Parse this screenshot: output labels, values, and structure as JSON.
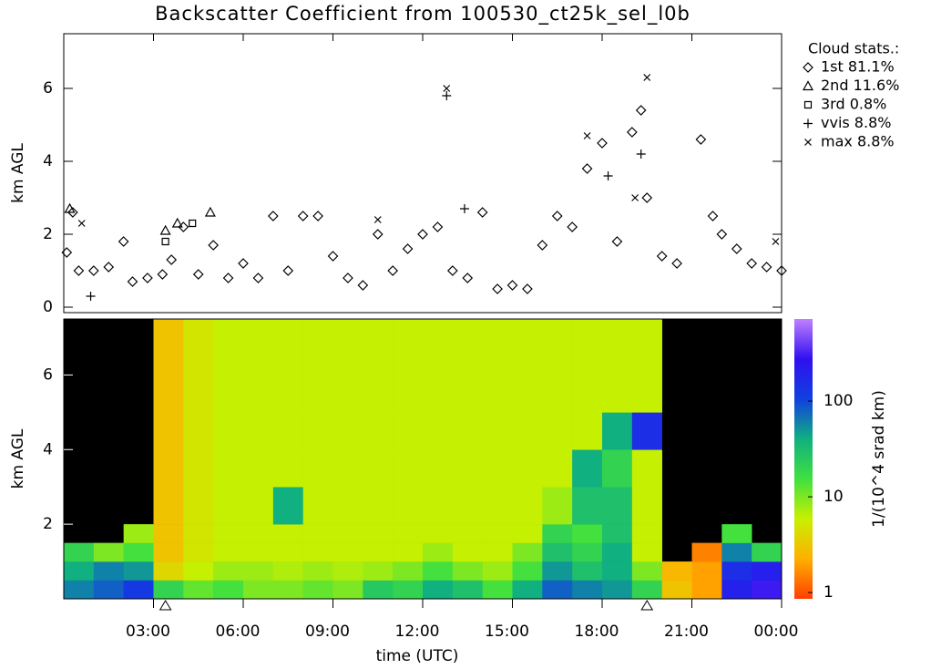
{
  "chart_data": [
    {
      "type": "scatter",
      "title": "Backscatter Coefficient from 100530_ct25k_sel_l0b",
      "ylabel": "km AGL",
      "xlim": [
        0,
        24
      ],
      "ylim": [
        -0.15,
        7.5
      ],
      "yticks": [
        0,
        2,
        4,
        6
      ],
      "legend_title": "Cloud stats.:",
      "legend": "upper right outside",
      "series": [
        {
          "name": "1st 81.1%",
          "marker": "diamond",
          "color": "#000000",
          "x": [
            0.1,
            0.3,
            0.5,
            1,
            1.5,
            2,
            2.3,
            2.8,
            3.3,
            3.6,
            4,
            4.5,
            5,
            5.5,
            6,
            6.5,
            7,
            7.5,
            8,
            8.5,
            9,
            9.5,
            10,
            10.5,
            11,
            11.5,
            12,
            12.5,
            13,
            13.5,
            14,
            14.5,
            15,
            15.5,
            16,
            16.5,
            17,
            17.5,
            18,
            18.5,
            19,
            19.3,
            19.5,
            20,
            20.5,
            21.3,
            21.7,
            22,
            22.5,
            23,
            23.5,
            24
          ],
          "y": [
            1.5,
            2.6,
            1.0,
            1.0,
            1.1,
            1.8,
            0.7,
            0.8,
            0.9,
            1.3,
            2.2,
            0.9,
            1.7,
            0.8,
            1.2,
            0.8,
            2.5,
            1.0,
            2.5,
            2.5,
            1.4,
            0.8,
            0.6,
            2.0,
            1.0,
            1.6,
            2.0,
            2.2,
            1.0,
            0.8,
            2.6,
            0.5,
            0.6,
            0.5,
            1.7,
            2.5,
            2.2,
            3.8,
            4.5,
            1.8,
            4.8,
            5.4,
            3.0,
            1.4,
            1.2,
            4.6,
            2.5,
            2.0,
            1.6,
            1.2,
            1.1,
            1.0
          ]
        },
        {
          "name": "2nd 11.6%",
          "marker": "triangle",
          "color": "#000000",
          "x": [
            0.2,
            3.4,
            3.8,
            4.9
          ],
          "y": [
            2.7,
            2.1,
            2.3,
            2.6
          ]
        },
        {
          "name": "3rd 0.8%",
          "marker": "square",
          "color": "#000000",
          "x": [
            3.4,
            4.3
          ],
          "y": [
            1.8,
            2.3
          ]
        },
        {
          "name": "vvis 8.8%",
          "marker": "plus",
          "color": "#000000",
          "x": [
            0.9,
            12.8,
            13.4,
            18.2,
            19.3
          ],
          "y": [
            0.3,
            5.8,
            2.7,
            3.6,
            4.2
          ]
        },
        {
          "name": "max 8.8%",
          "marker": "x",
          "color": "#000000",
          "x": [
            0.6,
            10.5,
            12.8,
            17.5,
            19.1,
            19.5,
            23.8
          ],
          "y": [
            2.3,
            2.4,
            6.0,
            4.7,
            3.0,
            6.3,
            1.8
          ]
        }
      ]
    },
    {
      "type": "heatmap",
      "xlabel": "time (UTC)",
      "ylabel": "km AGL",
      "xlim": [
        0,
        24
      ],
      "ylim": [
        0,
        7.5
      ],
      "xticks": [
        {
          "value": 3,
          "label": "03:00"
        },
        {
          "value": 6,
          "label": "06:00"
        },
        {
          "value": 9,
          "label": "09:00"
        },
        {
          "value": 12,
          "label": "12:00"
        },
        {
          "value": 15,
          "label": "15:00"
        },
        {
          "value": 18,
          "label": "18:00"
        },
        {
          "value": 21,
          "label": "21:00"
        },
        {
          "value": 24,
          "label": "00:00"
        }
      ],
      "yticks": [
        2,
        4,
        6
      ],
      "x_edges": [
        0,
        1,
        2,
        3,
        4,
        5,
        6,
        7,
        8,
        9,
        10,
        11,
        12,
        13,
        14,
        15,
        16,
        17,
        18,
        19,
        20,
        21,
        22,
        23,
        24
      ],
      "y_edges": [
        0,
        0.5,
        1,
        1.5,
        2,
        3,
        4,
        5,
        6,
        7.5
      ],
      "z": [
        [
          60,
          40,
          20,
          null,
          null,
          null,
          null,
          null,
          null
        ],
        [
          80,
          60,
          10,
          null,
          null,
          null,
          null,
          null,
          null
        ],
        [
          120,
          50,
          15,
          8,
          null,
          null,
          null,
          null,
          null
        ],
        [
          20,
          4,
          3,
          3,
          3,
          3,
          3,
          3,
          3
        ],
        [
          12,
          6,
          5,
          5,
          5,
          5,
          5,
          5,
          5
        ],
        [
          15,
          8,
          6,
          6,
          6,
          6,
          6,
          6,
          6
        ],
        [
          10,
          8,
          6,
          6,
          6,
          6,
          6,
          6,
          6
        ],
        [
          10,
          7,
          6,
          6,
          40,
          6,
          6,
          6,
          6
        ],
        [
          12,
          8,
          6,
          6,
          6,
          6,
          6,
          6,
          6
        ],
        [
          10,
          7,
          6,
          6,
          6,
          6,
          6,
          6,
          6
        ],
        [
          25,
          8,
          6,
          6,
          6,
          6,
          6,
          6,
          6
        ],
        [
          20,
          10,
          6,
          6,
          6,
          6,
          6,
          6,
          6
        ],
        [
          40,
          15,
          8,
          6,
          6,
          6,
          6,
          6,
          6
        ],
        [
          30,
          10,
          6,
          6,
          6,
          6,
          6,
          6,
          6
        ],
        [
          15,
          8,
          6,
          6,
          6,
          6,
          6,
          6,
          6
        ],
        [
          40,
          15,
          10,
          6,
          6,
          6,
          6,
          6,
          6
        ],
        [
          80,
          50,
          30,
          20,
          8,
          6,
          6,
          6,
          6
        ],
        [
          60,
          30,
          20,
          15,
          30,
          40,
          6,
          6,
          6
        ],
        [
          50,
          40,
          40,
          30,
          30,
          20,
          40,
          6,
          6
        ],
        [
          20,
          10,
          6,
          6,
          6,
          6,
          150,
          6,
          6
        ],
        [
          3,
          2.5,
          null,
          null,
          null,
          null,
          null,
          null,
          null
        ],
        [
          2,
          2,
          1.5,
          null,
          null,
          null,
          null,
          null,
          null
        ],
        [
          200,
          150,
          60,
          15,
          null,
          null,
          null,
          null,
          null
        ],
        [
          300,
          200,
          20,
          null,
          null,
          null,
          null,
          null,
          null
        ]
      ],
      "axis_markers": [
        3.4,
        19.5
      ],
      "colorbar": {
        "label": "1/(10^4 srad km)",
        "log": true,
        "zlim": [
          0.86,
          720
        ],
        "zticks": [
          1,
          10,
          100
        ],
        "colormap": [
          "#ff4000",
          "#ffb000",
          "#c8f000",
          "#40e040",
          "#10b080",
          "#1040e0",
          "#3010f0",
          "#c080ff"
        ]
      },
      "background": "#000000"
    }
  ]
}
